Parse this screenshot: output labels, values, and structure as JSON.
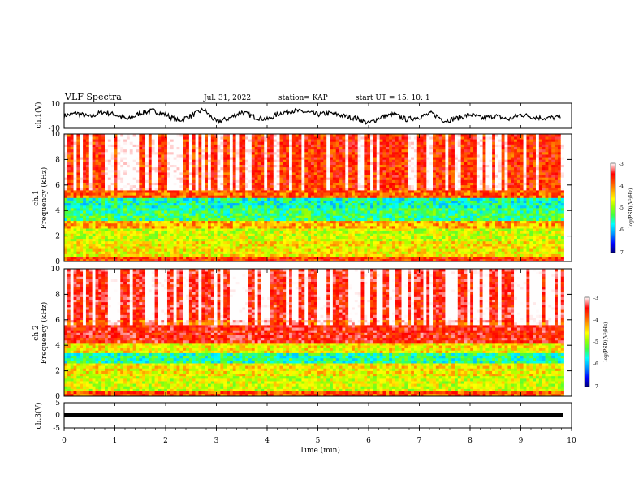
{
  "header": {
    "title": "VLF Spectra",
    "date": "Jul. 31, 2022",
    "station": "station= KAP",
    "start": "start  UT =   15: 10: 1"
  },
  "colors": {
    "background": "#ffffff",
    "axes": "#000000",
    "trace": "#000000",
    "colormap": [
      "#000080",
      "#0000ff",
      "#00a0ff",
      "#00ffff",
      "#40ff40",
      "#a0ff00",
      "#ffff00",
      "#ffa000",
      "#ff4000",
      "#ff0000",
      "#ffb0b0",
      "#ffffff"
    ]
  },
  "chart_data": [
    {
      "type": "line",
      "panel": "ch1-waveform",
      "ylabel": "ch.1(V)",
      "ylim": [
        -10,
        10
      ],
      "yticks": [
        "10",
        "-10"
      ],
      "xlim": [
        0,
        10
      ],
      "series": [
        {
          "x": [
            0,
            0.25,
            0.5,
            0.75,
            1.0,
            1.25,
            1.5,
            1.75,
            2.0,
            2.25,
            2.5,
            2.75,
            3.0,
            3.25,
            3.5,
            3.75,
            4.0,
            4.25,
            4.5,
            4.75,
            5.0,
            5.25,
            5.5,
            5.75,
            6.0,
            6.25,
            6.5,
            6.75,
            7.0,
            7.25,
            7.5,
            7.75,
            8.0,
            8.25,
            8.5,
            8.75,
            9.0,
            9.25,
            9.5,
            9.8
          ],
          "y": [
            0,
            2,
            -1,
            3,
            1,
            -3,
            2,
            4,
            1,
            -4,
            0,
            5,
            -5,
            -2,
            3,
            -1,
            -3,
            2,
            4,
            3,
            1,
            2,
            0,
            -2,
            -6,
            -1,
            1,
            -3,
            -1,
            2,
            -4,
            -2,
            1,
            -2,
            0,
            -3,
            1,
            -1,
            -2,
            -1
          ]
        }
      ]
    },
    {
      "type": "heatmap",
      "panel": "ch1-spectrogram",
      "ylabel": "ch.1\nFrequency (kHz)",
      "ylabel_lines": [
        "ch.1",
        "Frequency (kHz)"
      ],
      "ylim": [
        0,
        10
      ],
      "yticks": [
        "0",
        "2",
        "4",
        "6",
        "8",
        "10"
      ],
      "xlim": [
        0,
        9.85
      ],
      "colorbar": {
        "label": "log(PSD)(V²/Hz)",
        "range": [
          -7,
          -3
        ],
        "ticks": [
          "-3",
          "-4",
          "-5",
          "-6",
          "-7"
        ]
      },
      "frequency_bands_khz": [
        {
          "f0": 0.0,
          "f1": 0.4,
          "level": 0.75
        },
        {
          "f0": 0.4,
          "f1": 1.6,
          "level": 0.55
        },
        {
          "f0": 1.6,
          "f1": 2.6,
          "level": 0.5
        },
        {
          "f0": 2.6,
          "f1": 3.2,
          "level": 0.62
        },
        {
          "f0": 3.2,
          "f1": 4.2,
          "level": 0.35
        },
        {
          "f0": 4.2,
          "f1": 5.0,
          "level": 0.3
        },
        {
          "f0": 5.0,
          "f1": 5.6,
          "level": 0.7
        },
        {
          "f0": 5.6,
          "f1": 10.0,
          "level": 0.85
        }
      ]
    },
    {
      "type": "heatmap",
      "panel": "ch2-spectrogram",
      "ylabel": "ch.2\nFrequency (kHz)",
      "ylabel_lines": [
        "ch.2",
        "Frequency (kHz)"
      ],
      "ylim": [
        0,
        10
      ],
      "yticks": [
        "0",
        "2",
        "4",
        "6",
        "8",
        "10"
      ],
      "xlim": [
        0,
        9.85
      ],
      "colorbar": {
        "label": "log(PSD)(V²/Hz)",
        "range": [
          -7,
          -3
        ],
        "ticks": [
          "-3",
          "-4",
          "-5",
          "-6",
          "-7"
        ]
      },
      "frequency_bands_khz": [
        {
          "f0": 0.0,
          "f1": 0.4,
          "level": 0.72
        },
        {
          "f0": 0.4,
          "f1": 1.6,
          "level": 0.5
        },
        {
          "f0": 1.6,
          "f1": 2.6,
          "level": 0.55
        },
        {
          "f0": 2.6,
          "f1": 3.4,
          "level": 0.32
        },
        {
          "f0": 3.4,
          "f1": 4.2,
          "level": 0.55
        },
        {
          "f0": 4.2,
          "f1": 6.0,
          "level": 0.8
        },
        {
          "f0": 6.0,
          "f1": 10.0,
          "level": 0.9
        }
      ]
    },
    {
      "type": "line",
      "panel": "ch3-waveform",
      "ylabel": "ch.3(V)",
      "ylim": [
        -5,
        5
      ],
      "yticks": [
        "5",
        "0",
        "-5"
      ],
      "xlim": [
        0,
        10
      ],
      "xlabel": "Time (min)",
      "xticks": [
        "0",
        "1",
        "2",
        "3",
        "4",
        "5",
        "6",
        "7",
        "8",
        "9",
        "10"
      ],
      "series": [
        {
          "x": [
            0,
            9.85
          ],
          "y": [
            0,
            0
          ]
        }
      ]
    }
  ]
}
